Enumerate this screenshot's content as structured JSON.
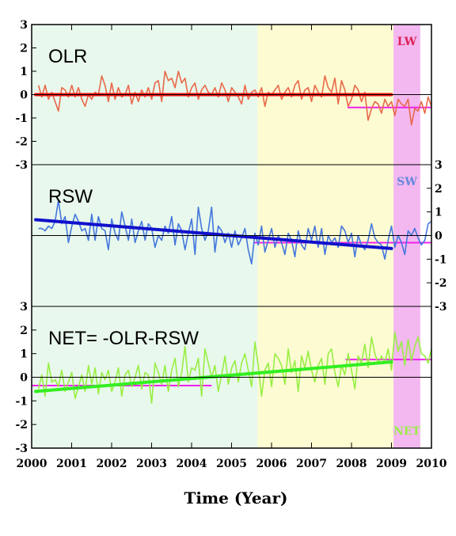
{
  "chart_data": {
    "type": "line",
    "xlabel": "Time (Year)",
    "xlim": [
      2000,
      2010
    ],
    "x_ticks": [
      "2000",
      "2001",
      "2002",
      "2003",
      "2004",
      "2005",
      "2006",
      "2007",
      "2008",
      "2009",
      "2010"
    ],
    "ylim": [
      -3,
      3
    ],
    "y_ticks": [
      "3",
      "2",
      "1",
      "0",
      "-1",
      "-2",
      "-3"
    ],
    "grid": false,
    "colors": {
      "green_region": "#e8f8ec",
      "yellow_region": "#fdfbd2",
      "pink_region": "#f3b8f0",
      "olr_series": "#e8694a",
      "olr_trend": "#ee1111",
      "rsw_series": "#4477dd",
      "rsw_trend": "#1111cc",
      "net_series": "#99ee44",
      "net_trend": "#33ee22",
      "mean_lines": "#ee22ee",
      "lw_label": "#dd2255",
      "sw_label": "#6688dd",
      "net_label": "#99ee44"
    },
    "regions": [
      {
        "x0": 2000,
        "x1": 2005.65,
        "color": "#e8f8ec"
      },
      {
        "x0": 2005.65,
        "x1": 2009.05,
        "color": "#fdfbd2"
      },
      {
        "x0": 2009.05,
        "x1": 2009.72,
        "color": "#f3b8f0"
      }
    ],
    "panels": [
      {
        "label": "OLR",
        "region_tag": "LW",
        "tag_color": "#dd2255",
        "y_axis_side": "left",
        "series_color": "#e8694a",
        "trend": {
          "x": [
            2000.1,
            2009.0
          ],
          "y": [
            0,
            0
          ],
          "color": "#ee1111"
        },
        "mean_segments": [
          {
            "x": [
              2007.9,
              2010.0
            ],
            "y": [
              -0.55,
              -0.55
            ],
            "color": "#ee22ee"
          }
        ],
        "x_start": 2000.17,
        "x_step": 0.0833,
        "values": [
          0.4,
          -0.1,
          0.4,
          -0.2,
          0.1,
          -0.3,
          -0.7,
          0.3,
          0.2,
          -0.1,
          0.4,
          -0.1,
          0.3,
          -0.2,
          -0.5,
          0.0,
          -0.2,
          0.1,
          0.0,
          0.8,
          0.4,
          -0.3,
          0.5,
          -0.2,
          0.3,
          -0.1,
          0.0,
          0.4,
          -0.4,
          0.1,
          -0.3,
          0.2,
          -0.1,
          0.3,
          -0.2,
          0.5,
          0.6,
          -0.3,
          1.0,
          0.6,
          0.7,
          0.3,
          1.0,
          0.5,
          0.7,
          -0.1,
          0.3,
          0.5,
          -0.2,
          0.2,
          0.4,
          0.1,
          0.0,
          0.3,
          -0.1,
          0.5,
          0.2,
          -0.3,
          0.3,
          0.1,
          -0.1,
          -0.4,
          0.4,
          -0.2,
          0.1,
          0.2,
          -0.1,
          0.3,
          -0.5,
          0.1,
          0.0,
          0.2,
          0.4,
          -0.2,
          0.1,
          0.3,
          -0.1,
          0.4,
          0.6,
          -0.2,
          0.2,
          0.3,
          -0.3,
          0.4,
          0.1,
          -0.1,
          0.8,
          0.3,
          0.1,
          0.7,
          -0.4,
          0.6,
          0.2,
          -0.5,
          -0.2,
          0.4,
          0.2,
          -0.3,
          0.1,
          -1.1,
          -0.6,
          -0.3,
          -0.4,
          -0.8,
          -0.2,
          -0.5,
          -0.3,
          -0.9,
          -0.2,
          -0.4,
          -0.5,
          -0.2,
          -1.3,
          -0.6,
          -0.7,
          -0.3,
          -0.8,
          -0.1,
          -0.5
        ]
      },
      {
        "label": "RSW",
        "region_tag": "SW",
        "tag_color": "#6688dd",
        "y_axis_side": "right",
        "series_color": "#4477dd",
        "trend": {
          "x": [
            2000.1,
            2009.0
          ],
          "y": [
            0.67,
            -0.55
          ],
          "color": "#1111cc"
        },
        "mean_segments": [
          {
            "x": [
              2005.55,
              2010.0
            ],
            "y": [
              -0.3,
              -0.3
            ],
            "color": "#ee22ee"
          }
        ],
        "x_start": 2000.17,
        "x_step": 0.0833,
        "values": [
          0.3,
          0.3,
          0.2,
          0.4,
          0.3,
          0.6,
          1.5,
          0.5,
          0.8,
          -0.3,
          0.4,
          0.9,
          0.6,
          0.2,
          0.3,
          -0.2,
          0.9,
          -0.2,
          0.8,
          0.3,
          0.2,
          -0.6,
          0.7,
          0.1,
          -0.2,
          1.0,
          0.4,
          -0.2,
          0.7,
          -0.3,
          0.2,
          0.6,
          -0.2,
          0.5,
          0.3,
          -0.5,
          0.0,
          -0.2,
          0.4,
          0.1,
          0.8,
          -0.4,
          0.5,
          0.2,
          -0.6,
          0.1,
          0.7,
          -0.8,
          1.2,
          0.3,
          -0.2,
          0.2,
          1.2,
          -0.7,
          0.4,
          0.2,
          -0.3,
          0.1,
          -0.5,
          0.2,
          -0.4,
          -0.1,
          0.3,
          -0.6,
          -1.2,
          0.1,
          -0.4,
          0.4,
          -0.7,
          -0.2,
          0.3,
          -0.5,
          0.0,
          -0.3,
          -0.8,
          0.1,
          -0.2,
          -0.9,
          0.2,
          -0.4,
          -0.6,
          0.3,
          -0.2,
          0.4,
          -0.5,
          0.3,
          -0.8,
          0.0,
          -0.3,
          -0.1,
          -0.5,
          0.4,
          0.2,
          -0.3,
          0.1,
          -0.9,
          0.0,
          -0.4,
          -0.6,
          -0.2,
          0.5,
          -0.1,
          -0.3,
          -0.4,
          -1.0,
          -0.2,
          0.4,
          -0.5,
          0.0,
          -0.3,
          -0.8,
          0.2,
          0.0,
          0.3,
          -0.1,
          -0.4,
          -0.2,
          0.5,
          0.6
        ]
      },
      {
        "label": "NET= -OLR-RSW",
        "region_tag": "NET",
        "tag_color": "#99ee44",
        "y_axis_side": "left",
        "series_color": "#99ee44",
        "trend": {
          "x": [
            2000.1,
            2009.0
          ],
          "y": [
            -0.6,
            0.65
          ],
          "color": "#33ee22"
        },
        "mean_segments": [
          {
            "x": [
              2000.0,
              2004.5
            ],
            "y": [
              -0.35,
              -0.35
            ],
            "color": "#ee22ee"
          },
          {
            "x": [
              2007.85,
              2010.0
            ],
            "y": [
              0.75,
              0.75
            ],
            "color": "#ee22ee"
          }
        ],
        "x_start": 2000.17,
        "x_step": 0.0833,
        "values": [
          -0.5,
          0.1,
          -0.8,
          0.6,
          -0.2,
          -0.1,
          -0.4,
          0.3,
          -0.6,
          -0.2,
          0.2,
          -0.9,
          -0.4,
          0.1,
          -0.6,
          0.5,
          -0.3,
          0.4,
          -0.7,
          0.2,
          -0.1,
          0.3,
          -0.6,
          -0.2,
          0.4,
          -0.8,
          0.1,
          0.3,
          -0.4,
          0.0,
          0.5,
          -0.5,
          0.2,
          0.1,
          -1.1,
          0.6,
          0.2,
          -0.3,
          0.5,
          -0.6,
          0.3,
          0.8,
          -0.4,
          0.2,
          1.3,
          -0.2,
          0.4,
          0.3,
          0.8,
          -0.8,
          1.2,
          0.6,
          0.0,
          0.5,
          -0.6,
          0.1,
          0.9,
          -0.3,
          0.4,
          0.7,
          -0.2,
          0.6,
          1.0,
          0.3,
          -0.4,
          1.5,
          0.5,
          -0.8,
          0.3,
          0.6,
          -0.4,
          1.0,
          0.8,
          0.5,
          -0.3,
          1.2,
          0.2,
          0.7,
          -0.6,
          0.9,
          0.4,
          1.1,
          0.3,
          -0.2,
          0.5,
          0.8,
          -0.3,
          1.0,
          1.2,
          0.2,
          -0.4,
          0.5,
          0.1,
          1.0,
          0.3,
          -0.5,
          0.9,
          0.6,
          1.4,
          0.4,
          1.7,
          1.0,
          0.6,
          0.9,
          0.6,
          1.2,
          0.3,
          1.9,
          1.1,
          1.5,
          0.5,
          1.6,
          0.7,
          1.3,
          1.7,
          1.0,
          0.9,
          0.6,
          1.2
        ]
      }
    ]
  }
}
